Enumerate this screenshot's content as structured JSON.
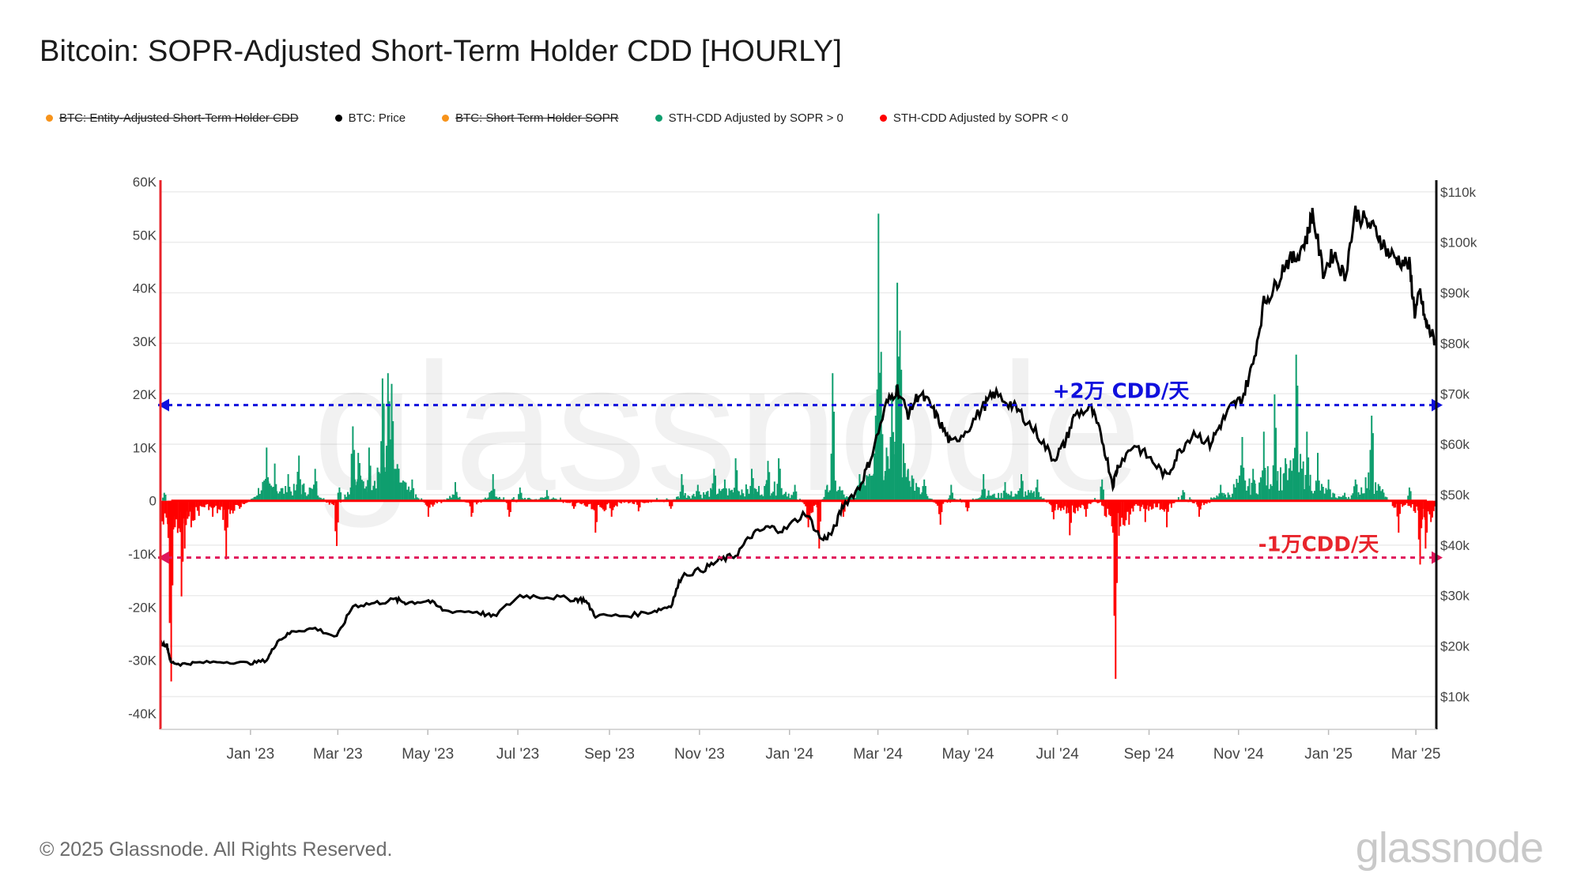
{
  "page": {
    "title": "Bitcoin: SOPR-Adjusted Short-Term Holder CDD [HOURLY]",
    "footer_copyright": "© 2025 Glassnode. All Rights Reserved.",
    "footer_logo": "glassnode",
    "watermark": "glassnode"
  },
  "legend": [
    {
      "label": "BTC: Entity-Adjusted Short-Term Holder CDD",
      "color": "#f7931a",
      "disabled": true
    },
    {
      "label": "BTC: Price",
      "color": "#000000",
      "disabled": false
    },
    {
      "label": "BTC: Short Term Holder SOPR",
      "color": "#f7931a",
      "disabled": true
    },
    {
      "label": "STH-CDD Adjusted by SOPR > 0",
      "color": "#0f9e6e",
      "disabled": false
    },
    {
      "label": "STH-CDD Adjusted by SOPR < 0",
      "color": "#ff0000",
      "disabled": false
    }
  ],
  "chart_data": {
    "type": "line",
    "title": "Bitcoin: SOPR-Adjusted Short-Term Holder CDD [HOURLY]",
    "colors": {
      "positive": "#0f9e6e",
      "negative": "#ff0000",
      "price": "#000000",
      "upper_ref": "#1010dd",
      "lower_ref": "#e0165a",
      "axis_left": "#e8242b",
      "axis_right": "#111111",
      "grid": "#ececec"
    },
    "x_range": [
      2022.833,
      2025.2
    ],
    "x_ticks": [
      {
        "label": "Jan '23",
        "t": 2023.0
      },
      {
        "label": "Mar '23",
        "t": 2023.162
      },
      {
        "label": "May '23",
        "t": 2023.329
      },
      {
        "label": "Jul '23",
        "t": 2023.496
      },
      {
        "label": "Sep '23",
        "t": 2023.666
      },
      {
        "label": "Nov '23",
        "t": 2023.833
      },
      {
        "label": "Jan '24",
        "t": 2024.0
      },
      {
        "label": "Mar '24",
        "t": 2024.164
      },
      {
        "label": "May '24",
        "t": 2024.331
      },
      {
        "label": "Jul '24",
        "t": 2024.497
      },
      {
        "label": "Sep '24",
        "t": 2024.667
      },
      {
        "label": "Nov '24",
        "t": 2024.833
      },
      {
        "label": "Jan '25",
        "t": 2025.0
      },
      {
        "label": "Mar '25",
        "t": 2025.162
      }
    ],
    "y_left": {
      "min": -43000,
      "max": 60000,
      "ticks": [
        60000,
        50000,
        40000,
        30000,
        20000,
        10000,
        0,
        -10000,
        -20000,
        -30000,
        -40000
      ],
      "tick_labels": [
        "60K",
        "50K",
        "40K",
        "30K",
        "20K",
        "10K",
        "0",
        "-10K",
        "-20K",
        "-30K",
        "-40K"
      ]
    },
    "y_right": {
      "min": 3500,
      "max": 112000,
      "ticks": [
        110000,
        100000,
        90000,
        80000,
        70000,
        60000,
        50000,
        40000,
        30000,
        20000,
        10000
      ],
      "tick_labels": [
        "$110k",
        "$100k",
        "$90k",
        "$80k",
        "$70k",
        "$60k",
        "$50k",
        "$40k",
        "$30k",
        "$20k",
        "$10k"
      ]
    },
    "reference_lines": [
      {
        "value": 18000,
        "axis": "left",
        "label": "+2万 CDD/天",
        "color": "#1010dd"
      },
      {
        "value": -10700,
        "axis": "left",
        "label": "-1万CDD/天",
        "color": "#e0165a"
      }
    ],
    "price_series": {
      "name": "BTC: Price",
      "points": [
        [
          2022.833,
          20500
        ],
        [
          2022.845,
          20200
        ],
        [
          2022.852,
          16800
        ],
        [
          2022.87,
          16400
        ],
        [
          2022.9,
          16700
        ],
        [
          2022.95,
          16900
        ],
        [
          2023.0,
          16600
        ],
        [
          2023.03,
          17200
        ],
        [
          2023.05,
          21000
        ],
        [
          2023.08,
          23000
        ],
        [
          2023.12,
          23500
        ],
        [
          2023.16,
          21800
        ],
        [
          2023.19,
          28000
        ],
        [
          2023.23,
          28500
        ],
        [
          2023.27,
          29200
        ],
        [
          2023.29,
          28600
        ],
        [
          2023.33,
          29000
        ],
        [
          2023.36,
          27000
        ],
        [
          2023.42,
          26800
        ],
        [
          2023.45,
          25800
        ],
        [
          2023.5,
          30000
        ],
        [
          2023.55,
          29800
        ],
        [
          2023.6,
          29300
        ],
        [
          2023.62,
          29200
        ],
        [
          2023.64,
          26000
        ],
        [
          2023.7,
          26000
        ],
        [
          2023.75,
          27000
        ],
        [
          2023.78,
          28000
        ],
        [
          2023.8,
          34000
        ],
        [
          2023.84,
          35200
        ],
        [
          2023.87,
          37000
        ],
        [
          2023.9,
          38000
        ],
        [
          2023.93,
          42000
        ],
        [
          2023.96,
          43500
        ],
        [
          2023.99,
          43000
        ],
        [
          2024.03,
          46500
        ],
        [
          2024.06,
          41000
        ],
        [
          2024.08,
          42500
        ],
        [
          2024.1,
          48000
        ],
        [
          2024.13,
          51500
        ],
        [
          2024.15,
          57000
        ],
        [
          2024.18,
          68000
        ],
        [
          2024.2,
          71000
        ],
        [
          2024.22,
          66000
        ],
        [
          2024.24,
          70000
        ],
        [
          2024.26,
          68000
        ],
        [
          2024.28,
          64000
        ],
        [
          2024.3,
          60000
        ],
        [
          2024.33,
          63000
        ],
        [
          2024.36,
          67500
        ],
        [
          2024.38,
          70000
        ],
        [
          2024.41,
          68000
        ],
        [
          2024.43,
          66000
        ],
        [
          2024.46,
          62000
        ],
        [
          2024.49,
          57000
        ],
        [
          2024.51,
          60000
        ],
        [
          2024.53,
          66000
        ],
        [
          2024.56,
          67000
        ],
        [
          2024.58,
          61000
        ],
        [
          2024.6,
          52000
        ],
        [
          2024.61,
          56000
        ],
        [
          2024.64,
          60000
        ],
        [
          2024.67,
          57000
        ],
        [
          2024.7,
          53500
        ],
        [
          2024.72,
          58000
        ],
        [
          2024.75,
          62500
        ],
        [
          2024.78,
          60000
        ],
        [
          2024.8,
          64000
        ],
        [
          2024.82,
          67500
        ],
        [
          2024.84,
          69000
        ],
        [
          2024.86,
          76000
        ],
        [
          2024.88,
          88000
        ],
        [
          2024.9,
          91000
        ],
        [
          2024.92,
          96000
        ],
        [
          2024.94,
          97000
        ],
        [
          2024.96,
          101000
        ],
        [
          2024.97,
          106000
        ],
        [
          2024.99,
          94000
        ],
        [
          2025.01,
          98000
        ],
        [
          2025.03,
          93000
        ],
        [
          2025.05,
          106000
        ],
        [
          2025.07,
          104000
        ],
        [
          2025.09,
          102000
        ],
        [
          2025.11,
          98000
        ],
        [
          2025.13,
          96500
        ],
        [
          2025.15,
          95500
        ],
        [
          2025.16,
          86000
        ],
        [
          2025.17,
          90000
        ],
        [
          2025.18,
          84000
        ],
        [
          2025.19,
          82000
        ],
        [
          2025.2,
          80000
        ]
      ]
    },
    "cdd_spikes": [
      [
        2022.84,
        1500
      ],
      [
        2022.85,
        -23000
      ],
      [
        2022.853,
        -34000
      ],
      [
        2022.86,
        -5000
      ],
      [
        2022.872,
        -18000
      ],
      [
        2022.878,
        -9000
      ],
      [
        2022.89,
        -5000
      ],
      [
        2022.93,
        -3000
      ],
      [
        2022.955,
        -11000
      ],
      [
        2022.98,
        -1500
      ],
      [
        2023.03,
        10000
      ],
      [
        2023.045,
        7000
      ],
      [
        2023.07,
        5000
      ],
      [
        2023.09,
        8500
      ],
      [
        2023.12,
        6000
      ],
      [
        2023.16,
        -8500
      ],
      [
        2023.165,
        2500
      ],
      [
        2023.19,
        14000
      ],
      [
        2023.2,
        9000
      ],
      [
        2023.22,
        10000
      ],
      [
        2023.245,
        23000
      ],
      [
        2023.255,
        24000
      ],
      [
        2023.262,
        22000
      ],
      [
        2023.27,
        6000
      ],
      [
        2023.3,
        4000
      ],
      [
        2023.33,
        -3000
      ],
      [
        2023.38,
        3500
      ],
      [
        2023.41,
        -3000
      ],
      [
        2023.45,
        5000
      ],
      [
        2023.48,
        -3000
      ],
      [
        2023.5,
        2500
      ],
      [
        2023.55,
        2000
      ],
      [
        2023.6,
        -1500
      ],
      [
        2023.64,
        -6000
      ],
      [
        2023.67,
        -3000
      ],
      [
        2023.72,
        -2000
      ],
      [
        2023.78,
        -1500
      ],
      [
        2023.8,
        5000
      ],
      [
        2023.83,
        3000
      ],
      [
        2023.86,
        6000
      ],
      [
        2023.88,
        4000
      ],
      [
        2023.9,
        8000
      ],
      [
        2023.93,
        6000
      ],
      [
        2023.96,
        7500
      ],
      [
        2023.98,
        8000
      ],
      [
        2024.01,
        3000
      ],
      [
        2024.035,
        -5000
      ],
      [
        2024.055,
        -9000
      ],
      [
        2024.07,
        3000
      ],
      [
        2024.08,
        24000
      ],
      [
        2024.1,
        -3000
      ],
      [
        2024.13,
        5000
      ],
      [
        2024.16,
        16000
      ],
      [
        2024.165,
        54000
      ],
      [
        2024.17,
        28000
      ],
      [
        2024.18,
        10000
      ],
      [
        2024.19,
        20000
      ],
      [
        2024.2,
        41000
      ],
      [
        2024.205,
        32000
      ],
      [
        2024.22,
        6000
      ],
      [
        2024.25,
        4000
      ],
      [
        2024.28,
        -4500
      ],
      [
        2024.3,
        3000
      ],
      [
        2024.33,
        -2000
      ],
      [
        2024.36,
        5000
      ],
      [
        2024.4,
        3500
      ],
      [
        2024.43,
        5000
      ],
      [
        2024.46,
        4000
      ],
      [
        2024.49,
        -3500
      ],
      [
        2024.52,
        -6500
      ],
      [
        2024.55,
        -3000
      ],
      [
        2024.58,
        4000
      ],
      [
        2024.6,
        -6000
      ],
      [
        2024.605,
        -33500
      ],
      [
        2024.63,
        -4500
      ],
      [
        2024.66,
        -4000
      ],
      [
        2024.7,
        -5000
      ],
      [
        2024.73,
        2000
      ],
      [
        2024.76,
        -3000
      ],
      [
        2024.8,
        3000
      ],
      [
        2024.84,
        12000
      ],
      [
        2024.86,
        6000
      ],
      [
        2024.88,
        13000
      ],
      [
        2024.9,
        20000
      ],
      [
        2024.92,
        8000
      ],
      [
        2024.94,
        27500
      ],
      [
        2024.96,
        13000
      ],
      [
        2024.98,
        9000
      ],
      [
        2025.0,
        4000
      ],
      [
        2025.03,
        1500
      ],
      [
        2025.05,
        4000
      ],
      [
        2025.08,
        16000
      ],
      [
        2025.1,
        2000
      ],
      [
        2025.13,
        -6000
      ],
      [
        2025.15,
        2500
      ],
      [
        2025.17,
        -12000
      ],
      [
        2025.18,
        -9000
      ],
      [
        2025.19,
        -4000
      ]
    ]
  }
}
